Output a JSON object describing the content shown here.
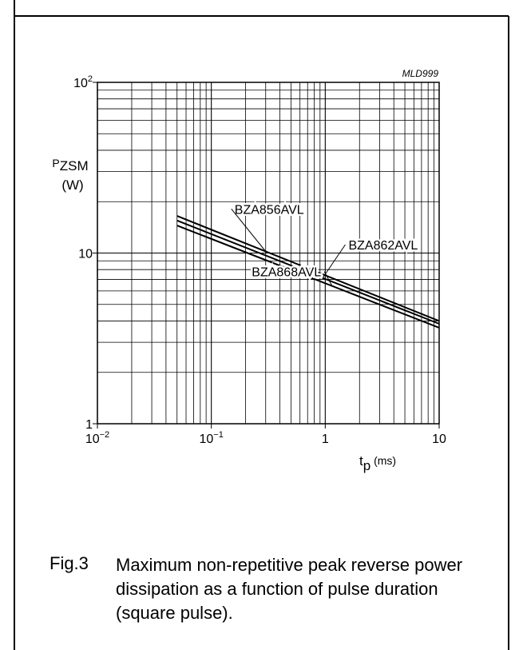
{
  "figure": {
    "code": "MLD999",
    "caption_label": "Fig.3",
    "caption_text": "Maximum non-repetitive peak reverse power dissipation as a function of pulse duration (square pulse)."
  },
  "chart_data": {
    "type": "line",
    "xscale": "log",
    "yscale": "log",
    "xlim": [
      0.01,
      10
    ],
    "ylim": [
      1,
      100
    ],
    "grid": true,
    "x_ticks": [
      {
        "value": 0.01,
        "base": "10",
        "exp": "−2"
      },
      {
        "value": 0.1,
        "base": "10",
        "exp": "−1"
      },
      {
        "value": 1,
        "base": "1",
        "exp": ""
      },
      {
        "value": 10,
        "base": "10",
        "exp": ""
      }
    ],
    "y_ticks": [
      {
        "value": 1,
        "base": "1",
        "exp": ""
      },
      {
        "value": 10,
        "base": "10",
        "exp": ""
      },
      {
        "value": 100,
        "base": "10",
        "exp": "2"
      }
    ],
    "xlabel": {
      "main": "t",
      "sub": "p",
      "unit": " (ms)"
    },
    "ylabel": {
      "main": "P",
      "sub": "ZSM",
      "unit": "(W)"
    },
    "series": [
      {
        "name": "BZA856AVL",
        "x": [
          0.05,
          10
        ],
        "y": [
          16.5,
          4.0
        ]
      },
      {
        "name": "BZA862AVL",
        "x": [
          0.05,
          10
        ],
        "y": [
          15.5,
          3.85
        ]
      },
      {
        "name": "BZA868AVL",
        "x": [
          0.05,
          10
        ],
        "y": [
          14.5,
          3.65
        ]
      }
    ]
  }
}
